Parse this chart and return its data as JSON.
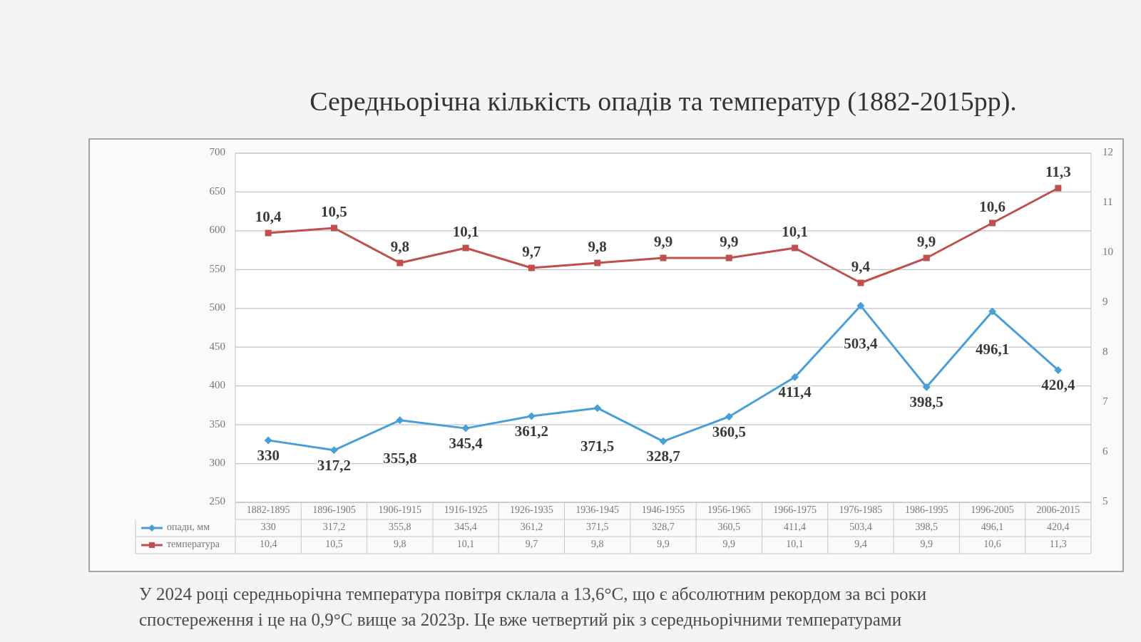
{
  "chart_data": {
    "type": "line",
    "title": "Середньорічна кількість опадів та температур (1882-2015рр).",
    "categories": [
      "1882-1895",
      "1896-1905",
      "1906-1915",
      "1916-1925",
      "1926-1935",
      "1936-1945",
      "1946-1955",
      "1956-1965",
      "1966-1975",
      "1976-1985",
      "1986-1995",
      "1996-2005",
      "2006-2015"
    ],
    "series": [
      {
        "name": "опади, мм",
        "color": "#4a9fd8",
        "marker": "diamond",
        "values": [
          330,
          317.2,
          355.8,
          345.4,
          361.2,
          371.5,
          328.7,
          360.5,
          411.4,
          503.4,
          398.5,
          496.1,
          420.4
        ],
        "value_labels": [
          "330",
          "317,2",
          "355,8",
          "345,4",
          "361,2",
          "371,5",
          "328,7",
          "360,5",
          "411,4",
          "503,4",
          "398,5",
          "496,1",
          "420,4"
        ]
      },
      {
        "name": "температура",
        "color": "#c0504d",
        "marker": "square",
        "axis": "y2",
        "values": [
          10.4,
          10.5,
          9.8,
          10.1,
          9.7,
          9.8,
          9.9,
          9.9,
          10.1,
          9.4,
          9.9,
          10.6,
          11.3
        ],
        "value_labels": [
          "10,4",
          "10,5",
          "9,8",
          "10,1",
          "9,7",
          "9,8",
          "9,9",
          "9,9",
          "10,1",
          "9,4",
          "9,9",
          "10,6",
          "11,3"
        ]
      }
    ],
    "ylim": [
      250,
      700
    ],
    "yticks": [
      250,
      300,
      350,
      400,
      450,
      500,
      550,
      600,
      650,
      700
    ],
    "y2lim": [
      5,
      12
    ],
    "y2ticks": [
      5,
      6,
      7,
      8,
      9,
      10,
      11,
      12
    ],
    "grid": "y",
    "legend": "bottom",
    "annotations": [
      "У 2024 році середньорічна температура повітря склала а 13,6°С, що є абсолютним рекордом за всі роки",
      "спостереження і це на 0,9°С вище за 2023р. Це вже четвертий рік з середньорічними температурами"
    ]
  }
}
